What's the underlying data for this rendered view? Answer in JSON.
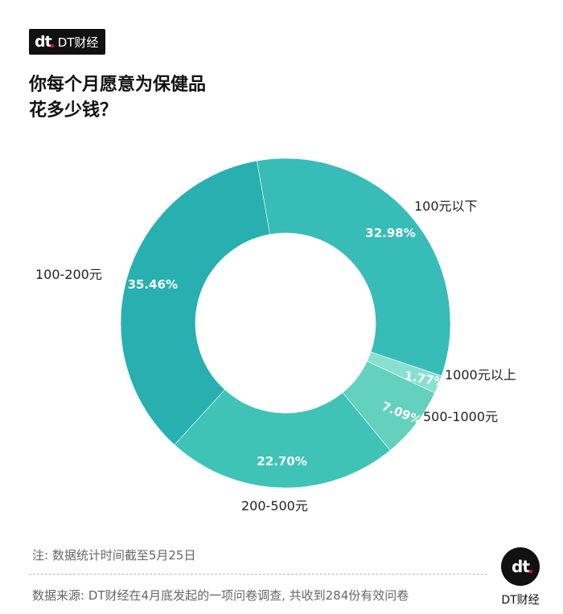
{
  "brand": {
    "mark": "dt",
    "name": "DT财经"
  },
  "title_lines": [
    "你每个月愿意为保健品",
    "花多少钱？"
  ],
  "chart_data": {
    "type": "pie",
    "title": "你每个月愿意为保健品花多少钱？",
    "slices": [
      {
        "label": "100元以下",
        "value": 32.98,
        "pct_label": "32.98%",
        "color": "#38bcb8"
      },
      {
        "label": "1000元以上",
        "value": 1.77,
        "pct_label": "1.77%",
        "color": "#88e0d0"
      },
      {
        "label": "500-1000元",
        "value": 7.09,
        "pct_label": "7.09%",
        "color": "#63d1bd"
      },
      {
        "label": "200-500元",
        "value": 22.7,
        "pct_label": "22.70%",
        "color": "#3fc3b7"
      },
      {
        "label": "100-200元",
        "value": 35.46,
        "pct_label": "35.46%",
        "color": "#28b0b0"
      }
    ],
    "donut": true,
    "legend": "none"
  },
  "note": "注: 数据统计时间截至5月25日",
  "source": "数据来源: DT财经在4月底发起的一项问卷调查, 共收到284份有效问卷",
  "footer_brand": "DT财经"
}
